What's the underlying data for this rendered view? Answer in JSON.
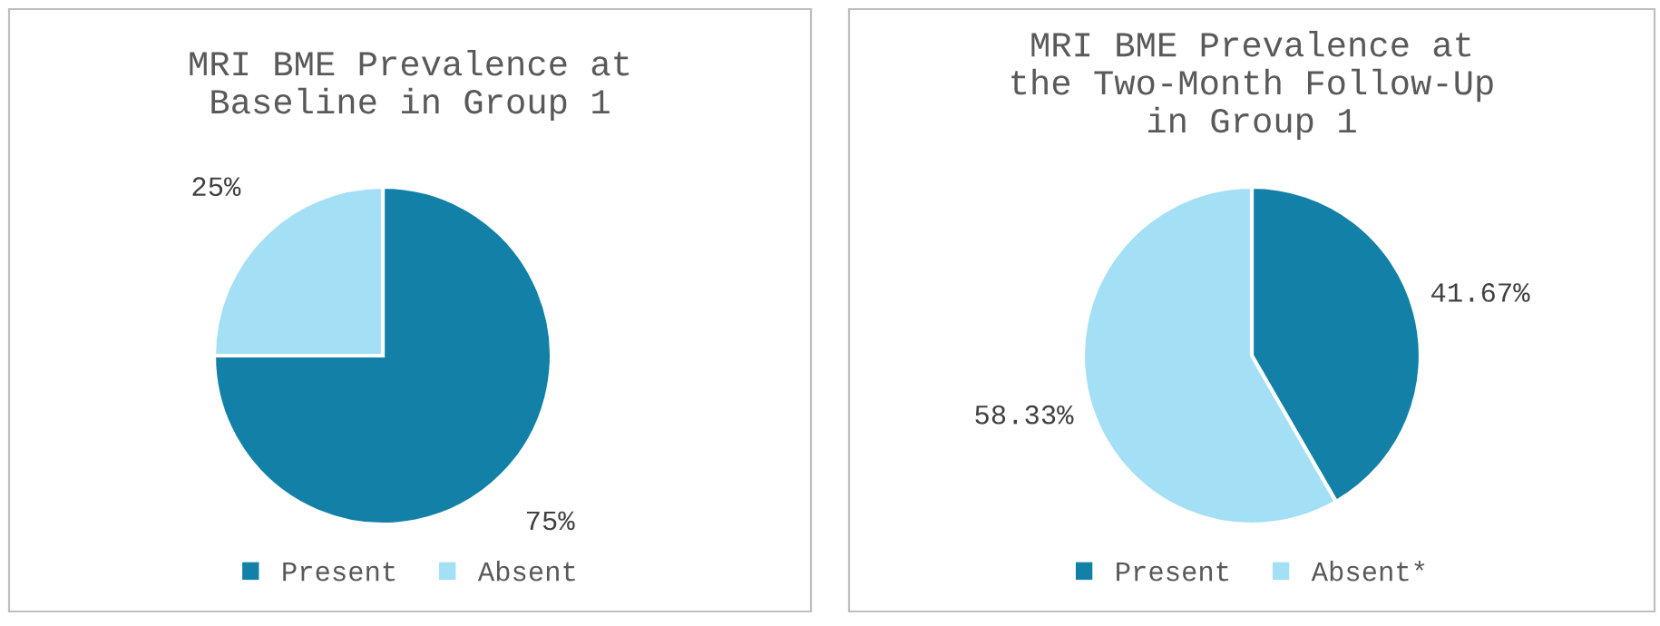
{
  "chart_data": [
    {
      "type": "pie",
      "title": "MRI BME Prevalence at\nBaseline in Group 1",
      "categories": [
        "Present",
        "Absent"
      ],
      "values": [
        75,
        25
      ],
      "colors": [
        "#1380a8",
        "#a3dff5"
      ],
      "value_labels": [
        "75%",
        "25%"
      ],
      "legend": "bottom"
    },
    {
      "type": "pie",
      "title": "MRI BME Prevalence at\nthe Two-Month Follow-Up\nin Group 1",
      "categories": [
        "Present",
        "Absent*"
      ],
      "values": [
        41.67,
        58.33
      ],
      "colors": [
        "#1380a8",
        "#a3dff5"
      ],
      "value_labels": [
        "41.67%",
        "58.33%"
      ],
      "legend": "bottom"
    }
  ]
}
